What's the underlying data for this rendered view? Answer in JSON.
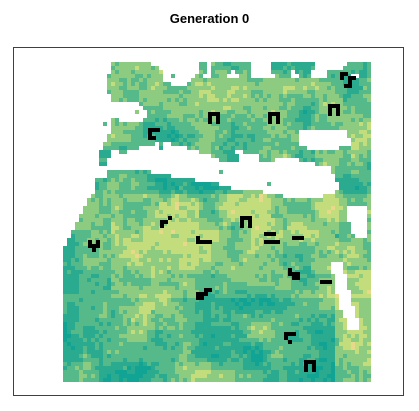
{
  "figure": {
    "title": "Generation 0"
  },
  "map": {
    "palette": [
      "#11a394",
      "#2aab8f",
      "#56b98a",
      "#8ccb80",
      "#c3dd7c",
      "#e8d98a",
      "#f0a97f",
      "#e2637c"
    ],
    "agent_color": "#000000"
  }
}
